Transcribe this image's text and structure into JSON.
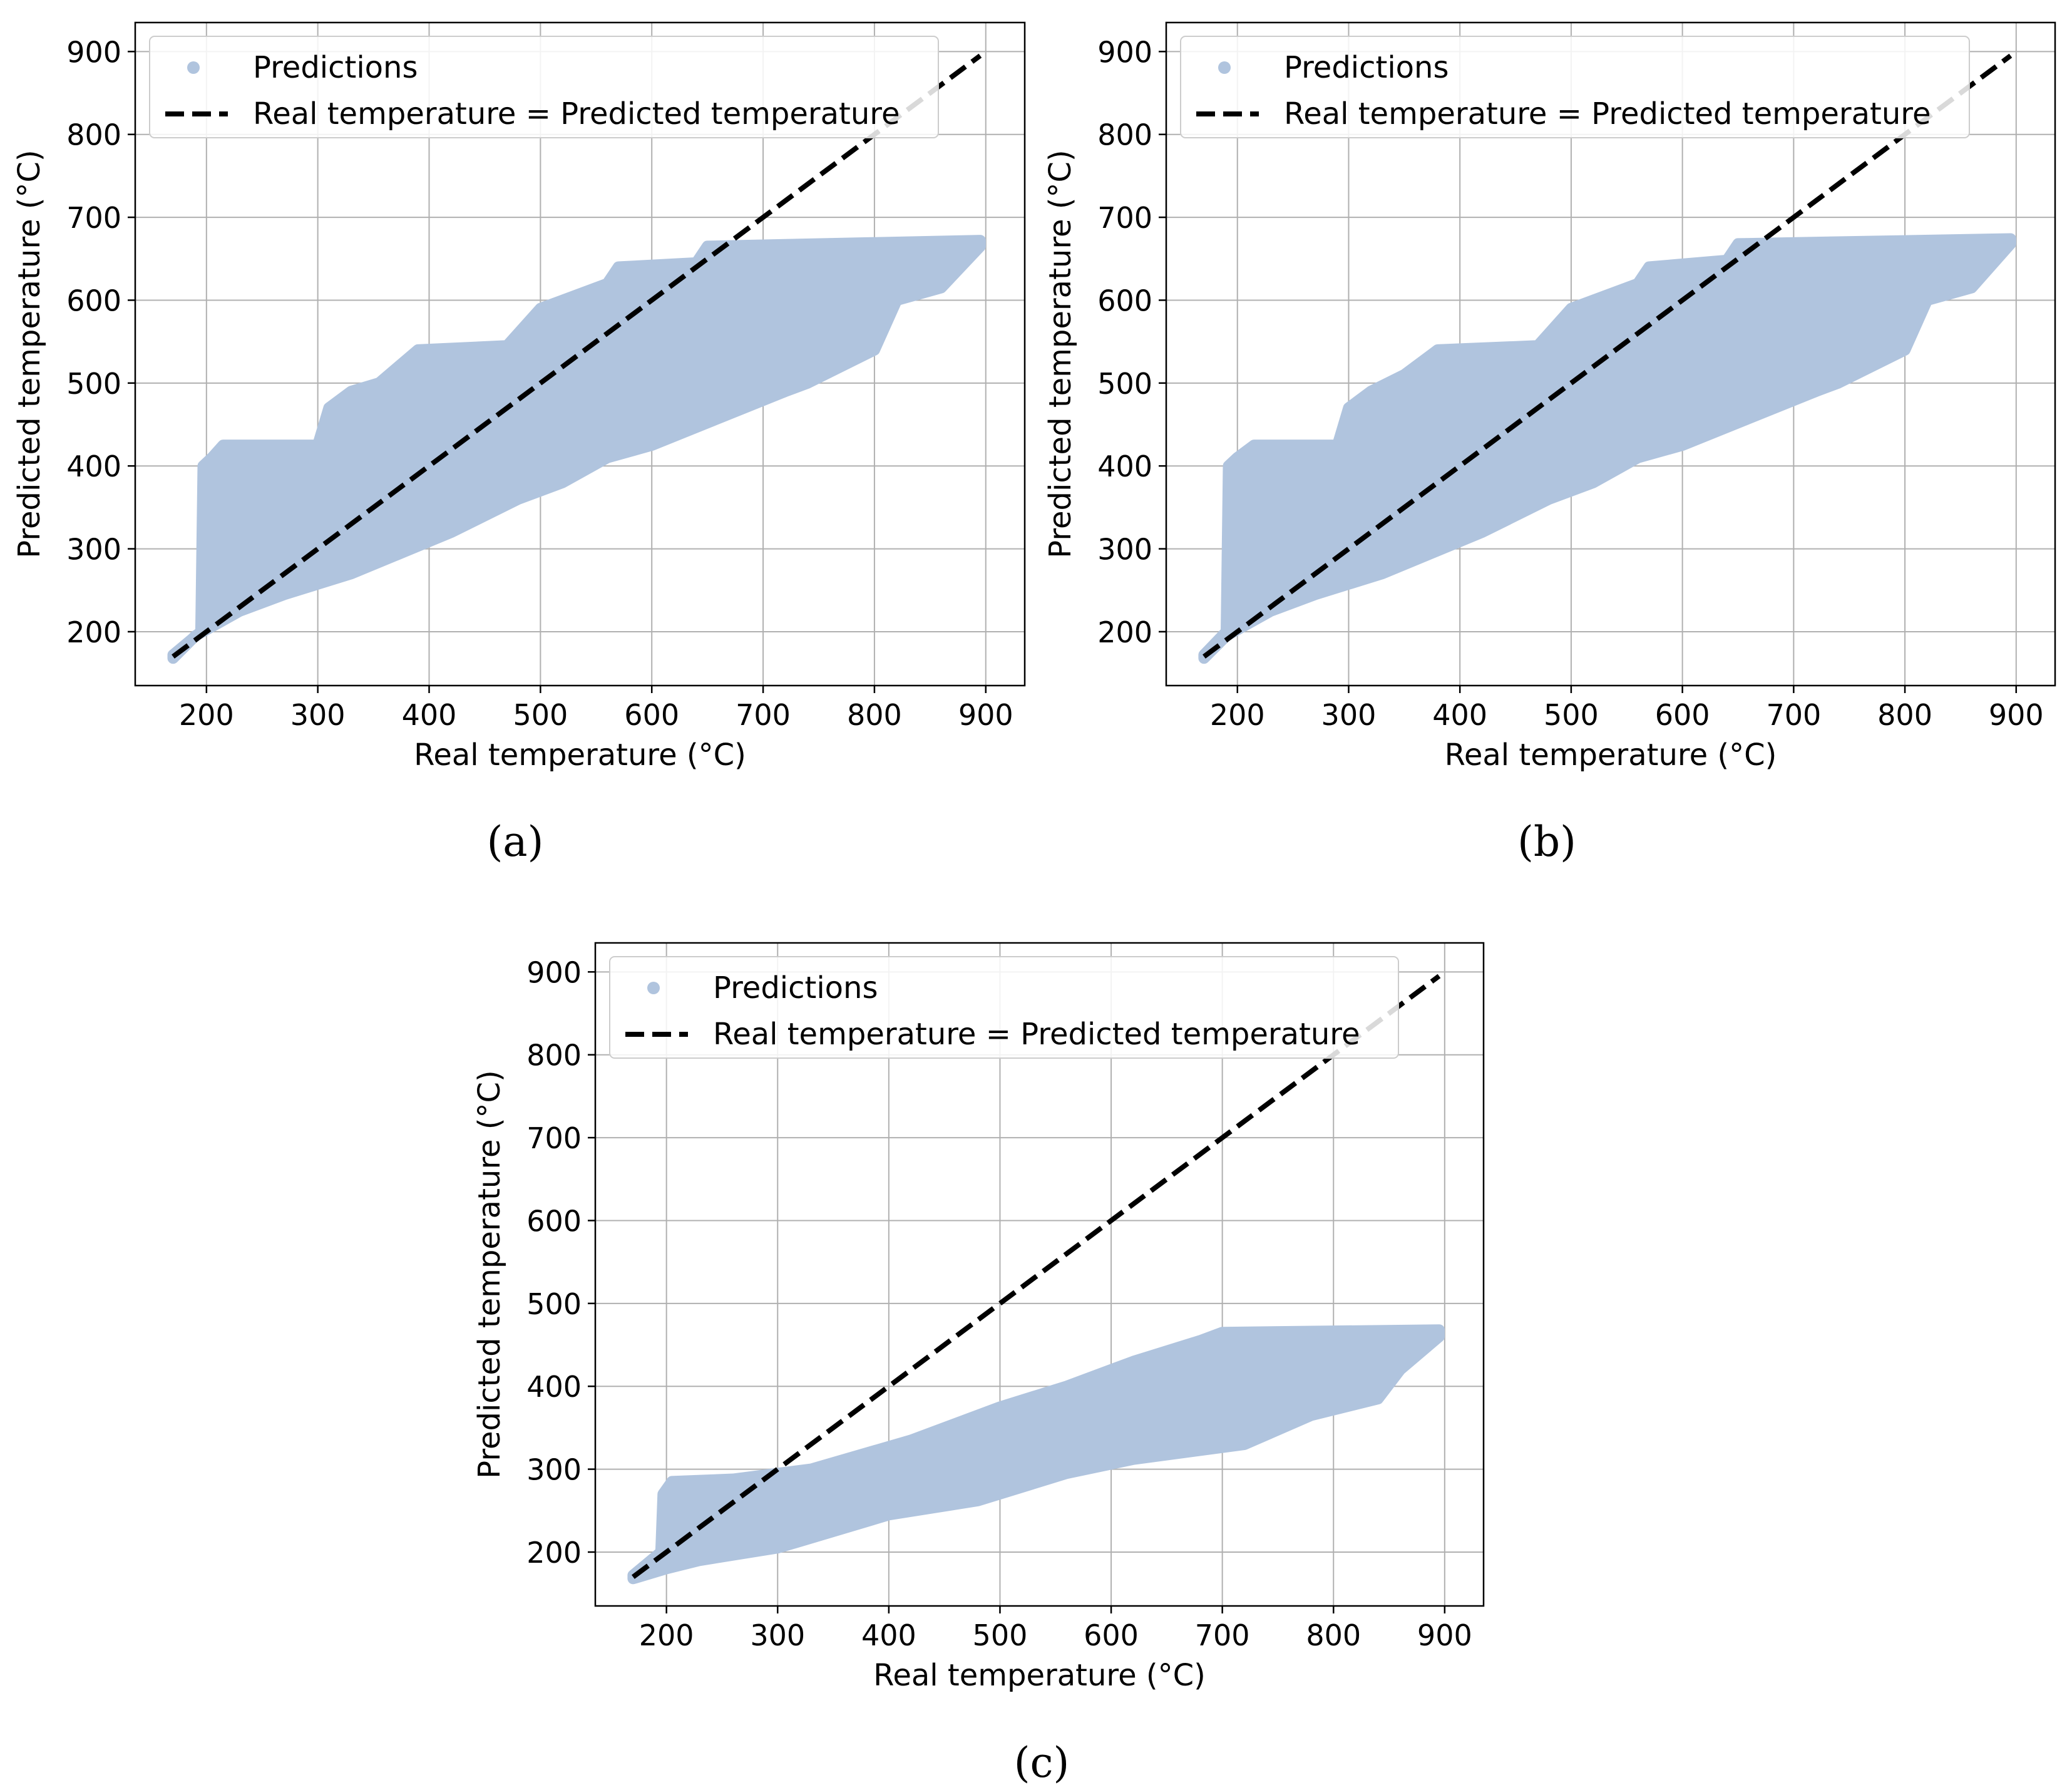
{
  "figure": {
    "point_color": "#b0c4de",
    "line_color": "#000000",
    "grid_color": "#b0b0b0"
  },
  "chart_data": [
    {
      "type": "scatter",
      "panel": "a",
      "caption": "(a)",
      "xlabel": "Real temperature (°C)",
      "ylabel": "Predicted temperature (°C)",
      "xlim": [
        136,
        935
      ],
      "ylim": [
        135,
        935
      ],
      "xticks": [
        200,
        300,
        400,
        500,
        600,
        700,
        800,
        900
      ],
      "yticks": [
        200,
        300,
        400,
        500,
        600,
        700,
        800,
        900
      ],
      "grid": true,
      "legend": {
        "position": "top-left",
        "entries": [
          "Predictions",
          "Real temperature = Predicted temperature"
        ]
      },
      "series": [
        {
          "name": "Predictions",
          "kind": "scatter-band",
          "upper": [
            [
              170,
              172
            ],
            [
              195,
              200
            ],
            [
              197,
              400
            ],
            [
              205,
              410
            ],
            [
              215,
              425
            ],
            [
              300,
              425
            ],
            [
              310,
              470
            ],
            [
              330,
              490
            ],
            [
              355,
              500
            ],
            [
              390,
              540
            ],
            [
              470,
              545
            ],
            [
              500,
              590
            ],
            [
              560,
              620
            ],
            [
              570,
              640
            ],
            [
              640,
              645
            ],
            [
              650,
              665
            ],
            [
              895,
              672
            ]
          ],
          "lower": [
            [
              895,
              665
            ],
            [
              860,
              615
            ],
            [
              820,
              600
            ],
            [
              800,
              540
            ],
            [
              740,
              500
            ],
            [
              720,
              490
            ],
            [
              600,
              425
            ],
            [
              560,
              410
            ],
            [
              520,
              380
            ],
            [
              480,
              360
            ],
            [
              420,
              320
            ],
            [
              330,
              270
            ],
            [
              270,
              245
            ],
            [
              230,
              225
            ],
            [
              210,
              210
            ],
            [
              190,
              195
            ],
            [
              170,
              168
            ]
          ]
        },
        {
          "name": "Real temperature = Predicted temperature",
          "kind": "line",
          "x": [
            170,
            895
          ],
          "y": [
            170,
            895
          ]
        }
      ]
    },
    {
      "type": "scatter",
      "panel": "b",
      "caption": "(b)",
      "xlabel": "Real temperature (°C)",
      "ylabel": "Predicted temperature (°C)",
      "xlim": [
        136,
        935
      ],
      "ylim": [
        135,
        935
      ],
      "xticks": [
        200,
        300,
        400,
        500,
        600,
        700,
        800,
        900
      ],
      "yticks": [
        200,
        300,
        400,
        500,
        600,
        700,
        800,
        900
      ],
      "grid": true,
      "legend": {
        "position": "top-left",
        "entries": [
          "Predictions",
          "Real temperature = Predicted temperature"
        ]
      },
      "series": [
        {
          "name": "Predictions",
          "kind": "scatter-band",
          "upper": [
            [
              170,
              172
            ],
            [
              190,
              200
            ],
            [
              192,
              400
            ],
            [
              200,
              410
            ],
            [
              215,
              425
            ],
            [
              290,
              425
            ],
            [
              300,
              470
            ],
            [
              320,
              490
            ],
            [
              350,
              510
            ],
            [
              380,
              540
            ],
            [
              470,
              545
            ],
            [
              500,
              590
            ],
            [
              560,
              620
            ],
            [
              570,
              640
            ],
            [
              640,
              648
            ],
            [
              650,
              668
            ],
            [
              895,
              674
            ]
          ],
          "lower": [
            [
              895,
              668
            ],
            [
              860,
              615
            ],
            [
              820,
              600
            ],
            [
              800,
              540
            ],
            [
              740,
              500
            ],
            [
              720,
              490
            ],
            [
              600,
              425
            ],
            [
              560,
              410
            ],
            [
              520,
              380
            ],
            [
              480,
              360
            ],
            [
              420,
              320
            ],
            [
              330,
              270
            ],
            [
              270,
              245
            ],
            [
              230,
              225
            ],
            [
              210,
              210
            ],
            [
              190,
              195
            ],
            [
              170,
              168
            ]
          ]
        },
        {
          "name": "Real temperature = Predicted temperature",
          "kind": "line",
          "x": [
            170,
            895
          ],
          "y": [
            170,
            895
          ]
        }
      ]
    },
    {
      "type": "scatter",
      "panel": "c",
      "caption": "(c)",
      "xlabel": "Real temperature (°C)",
      "ylabel": "Predicted temperature (°C)",
      "xlim": [
        136,
        935
      ],
      "ylim": [
        135,
        935
      ],
      "xticks": [
        200,
        300,
        400,
        500,
        600,
        700,
        800,
        900
      ],
      "yticks": [
        200,
        300,
        400,
        500,
        600,
        700,
        800,
        900
      ],
      "grid": true,
      "legend": {
        "position": "top-left",
        "entries": [
          "Predictions",
          "Real temperature = Predicted temperature"
        ]
      },
      "series": [
        {
          "name": "Predictions",
          "kind": "scatter-band",
          "upper": [
            [
              170,
              172
            ],
            [
              195,
              200
            ],
            [
              197,
              270
            ],
            [
              205,
              285
            ],
            [
              260,
              288
            ],
            [
              330,
              300
            ],
            [
              420,
              335
            ],
            [
              500,
              375
            ],
            [
              560,
              400
            ],
            [
              620,
              430
            ],
            [
              680,
              455
            ],
            [
              700,
              465
            ],
            [
              895,
              468
            ]
          ],
          "lower": [
            [
              895,
              460
            ],
            [
              860,
              420
            ],
            [
              840,
              385
            ],
            [
              780,
              365
            ],
            [
              720,
              330
            ],
            [
              620,
              312
            ],
            [
              560,
              295
            ],
            [
              480,
              262
            ],
            [
              400,
              245
            ],
            [
              300,
              205
            ],
            [
              230,
              190
            ],
            [
              200,
              180
            ],
            [
              170,
              168
            ]
          ]
        },
        {
          "name": "Real temperature = Predicted temperature",
          "kind": "line",
          "x": [
            170,
            895
          ],
          "y": [
            170,
            895
          ]
        }
      ]
    }
  ]
}
